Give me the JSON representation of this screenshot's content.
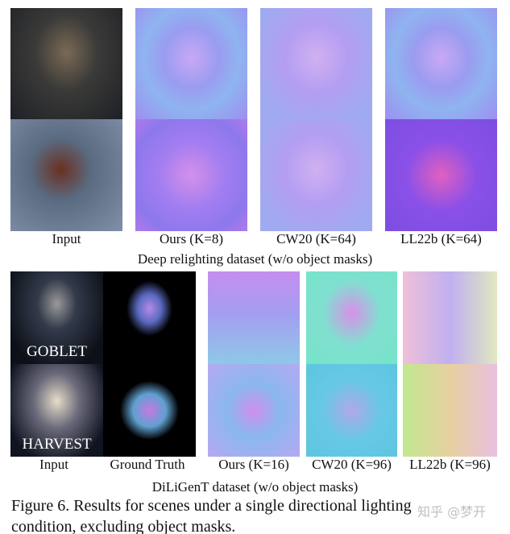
{
  "top_panel": {
    "column_labels": [
      "Input",
      "Ours (K=8)",
      "CW20 (K=64)",
      "LL22b (K=64)"
    ],
    "subtitle": "Deep relighting dataset (w/o object masks)"
  },
  "bottom_panel": {
    "column_labels": [
      "Input",
      "Ground Truth",
      "Ours (K=16)",
      "CW20 (K=96)",
      "LL22b (K=96)"
    ],
    "row_tags": [
      "GOBLET",
      "HARVEST"
    ],
    "subtitle": "DiLiGenT dataset (w/o object masks)"
  },
  "caption": {
    "line1": "Figure 6.  Results for scenes under a single directional lighting",
    "line2": "condition, excluding object masks."
  },
  "watermark": "知乎 @梦开"
}
